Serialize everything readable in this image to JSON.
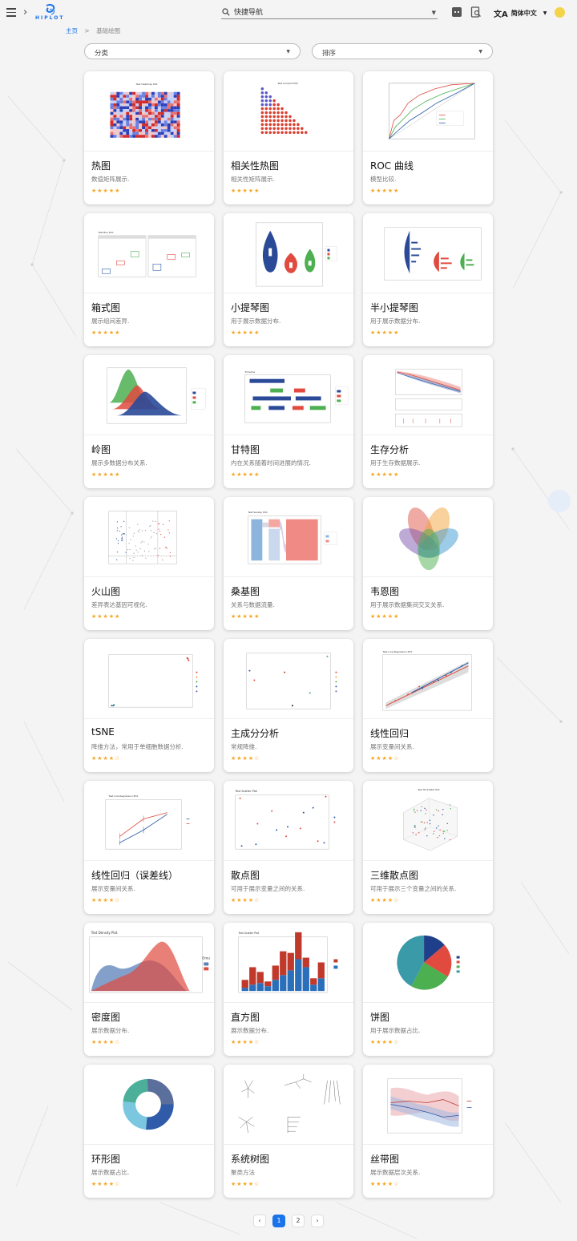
{
  "header": {
    "logo_text": "HIPLOT",
    "search_placeholder": "快捷导航",
    "language": "简体中文"
  },
  "breadcrumb": {
    "home": "主页",
    "separator": ">",
    "current": "基础绘图"
  },
  "filters": {
    "category": "分类",
    "sort": "排序"
  },
  "cards": [
    {
      "title": "热图",
      "desc": "数值矩阵展示.",
      "stars": "★★★★★",
      "thumb_title": "Test Heatmap Plot"
    },
    {
      "title": "相关性热图",
      "desc": "相关性矩阵展示.",
      "stars": "★★★★★",
      "thumb_title": "Test Corrplot Plot"
    },
    {
      "title": "ROC 曲线",
      "desc": "模型比较.",
      "stars": "★★★★★",
      "thumb_title": ""
    },
    {
      "title": "箱式图",
      "desc": "展示组间差异.",
      "stars": "★★★★★",
      "thumb_title": "Test Box Plot"
    },
    {
      "title": "小提琴图",
      "desc": "用于展示数据分布.",
      "stars": "★★★★★",
      "thumb_title": ""
    },
    {
      "title": "半小提琴图",
      "desc": "用于展示数据分布.",
      "stars": "★★★★★",
      "thumb_title": ""
    },
    {
      "title": "岭图",
      "desc": "展示多数据分布关系.",
      "stars": "★★★★★",
      "thumb_title": ""
    },
    {
      "title": "甘特图",
      "desc": "内在关系随着时间进展的情况.",
      "stars": "★★★★★",
      "thumb_title": "Timeline"
    },
    {
      "title": "生存分析",
      "desc": "用于生存数据展示.",
      "stars": "★★★★★",
      "thumb_title": ""
    },
    {
      "title": "火山图",
      "desc": "差异表达基因可视化.",
      "stars": "★★★★★",
      "thumb_title": ""
    },
    {
      "title": "桑基图",
      "desc": "关系与数据流量.",
      "stars": "★★★★★",
      "thumb_title": "Test Sankey Plot"
    },
    {
      "title": "韦恩图",
      "desc": "用于展示数据集间交叉关系.",
      "stars": "★★★★★",
      "thumb_title": ""
    },
    {
      "title": "tSNE",
      "desc": "降维方法，常用于单细胞数据分析.",
      "stars": "★★★★☆",
      "thumb_title": ""
    },
    {
      "title": "主成分分析",
      "desc": "常规降维.",
      "stars": "★★★★☆",
      "thumb_title": ""
    },
    {
      "title": "线性回归",
      "desc": "展示变量间关系.",
      "stars": "★★★★☆",
      "thumb_title": "Test Line Regression Plot"
    },
    {
      "title": "线性回归（误差线）",
      "desc": "展示变量间关系.",
      "stars": "★★★★☆",
      "thumb_title": "Test Line Regression Plot"
    },
    {
      "title": "散点图",
      "desc": "可用于展示变量之间的关系.",
      "stars": "★★★★☆",
      "thumb_title": "Test Scatter Plot"
    },
    {
      "title": "三维散点图",
      "desc": "可用于展示三个变量之间的关系.",
      "stars": "★★★★☆",
      "thumb_title": "Test 3D Scatter Plot"
    },
    {
      "title": "密度图",
      "desc": "展示数据分布.",
      "stars": "★★★★☆",
      "thumb_title": "Test Density Plot"
    },
    {
      "title": "直方图",
      "desc": "展示数据分布.",
      "stars": "★★★★☆",
      "thumb_title": "Test Scatter Plot"
    },
    {
      "title": "饼图",
      "desc": "用于展示数据占比.",
      "stars": "★★★★☆",
      "thumb_title": ""
    },
    {
      "title": "环形图",
      "desc": "展示数据占比.",
      "stars": "★★★★☆",
      "thumb_title": ""
    },
    {
      "title": "系统树图",
      "desc": "聚类方法",
      "stars": "★★★★☆",
      "thumb_title": ""
    },
    {
      "title": "丝带图",
      "desc": "展示数据层次关系.",
      "stars": "★★★★☆",
      "thumb_title": ""
    }
  ],
  "pagination": {
    "prev": "‹",
    "pages": [
      "1",
      "2"
    ],
    "next": "›"
  },
  "colors": {
    "accent": "#1a73e8",
    "star": "#f5a623",
    "red": "#e04a3f",
    "blue": "#2a5aa8",
    "green": "#4caf50"
  }
}
